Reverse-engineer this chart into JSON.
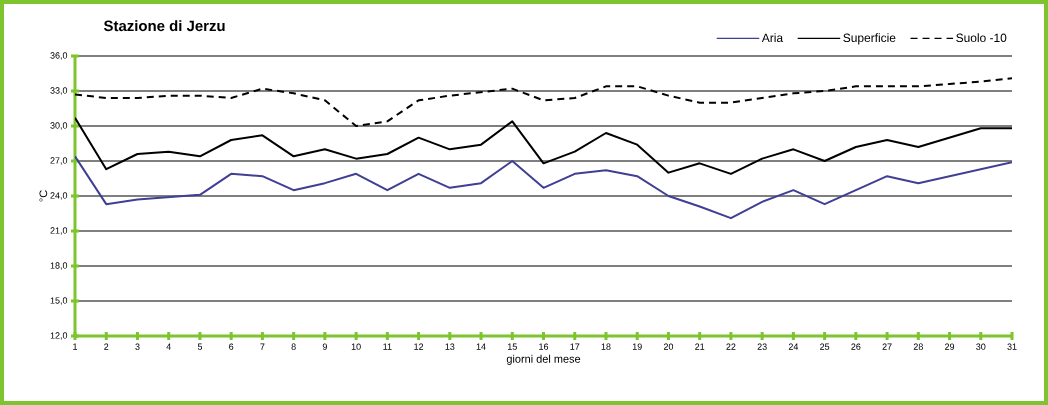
{
  "chart_data": {
    "type": "line",
    "title": "Stazione di Jerzu",
    "xlabel": "giorni del mese",
    "ylabel": "°C",
    "categories": [
      "1",
      "2",
      "3",
      "4",
      "5",
      "6",
      "7",
      "8",
      "9",
      "10",
      "11",
      "12",
      "13",
      "14",
      "15",
      "16",
      "17",
      "18",
      "19",
      "20",
      "21",
      "22",
      "23",
      "24",
      "25",
      "26",
      "27",
      "28",
      "29",
      "30",
      "31"
    ],
    "ylim": [
      12,
      36
    ],
    "yticks": [
      {
        "value": 12,
        "label": "12,0"
      },
      {
        "value": 15,
        "label": "15,0"
      },
      {
        "value": 18,
        "label": "18,0"
      },
      {
        "value": 21,
        "label": "21,0"
      },
      {
        "value": 24,
        "label": "24,0"
      },
      {
        "value": 27,
        "label": "27,0"
      },
      {
        "value": 30,
        "label": "30,0"
      },
      {
        "value": 33,
        "label": "33,0"
      },
      {
        "value": 36,
        "label": "36,0"
      }
    ],
    "grid": "y",
    "legend": "top right",
    "marker": "none",
    "series": [
      {
        "name": "Aria",
        "color": "#3f3f94",
        "line_style": "solid",
        "values": [
          27.4,
          23.3,
          23.7,
          23.9,
          24.1,
          25.9,
          25.7,
          24.5,
          25.1,
          25.9,
          24.5,
          25.9,
          24.7,
          25.1,
          27.0,
          24.7,
          25.9,
          26.2,
          25.7,
          24.0,
          23.1,
          22.1,
          23.5,
          24.5,
          23.3,
          24.5,
          25.7,
          25.1,
          25.7,
          26.3,
          26.9
        ]
      },
      {
        "name": "Superficie",
        "color": "#000000",
        "line_style": "solid",
        "values": [
          30.7,
          26.3,
          27.6,
          27.8,
          27.4,
          28.8,
          29.2,
          27.4,
          28.0,
          27.2,
          27.6,
          29.0,
          28.0,
          28.4,
          30.4,
          26.8,
          27.8,
          29.4,
          28.4,
          26.0,
          26.8,
          25.9,
          27.2,
          28.0,
          27.0,
          28.2,
          28.8,
          28.2,
          29.0,
          29.8,
          29.8
        ]
      },
      {
        "name": "Suolo -10",
        "color": "#000000",
        "line_style": "dashed",
        "values": [
          32.7,
          32.4,
          32.4,
          32.6,
          32.6,
          32.4,
          33.2,
          32.8,
          32.2,
          30.0,
          30.4,
          32.2,
          32.6,
          32.9,
          33.2,
          32.2,
          32.4,
          33.4,
          33.4,
          32.6,
          32.0,
          32.0,
          32.4,
          32.8,
          33.0,
          33.4,
          33.4,
          33.4,
          33.6,
          33.8,
          34.1
        ]
      }
    ]
  }
}
